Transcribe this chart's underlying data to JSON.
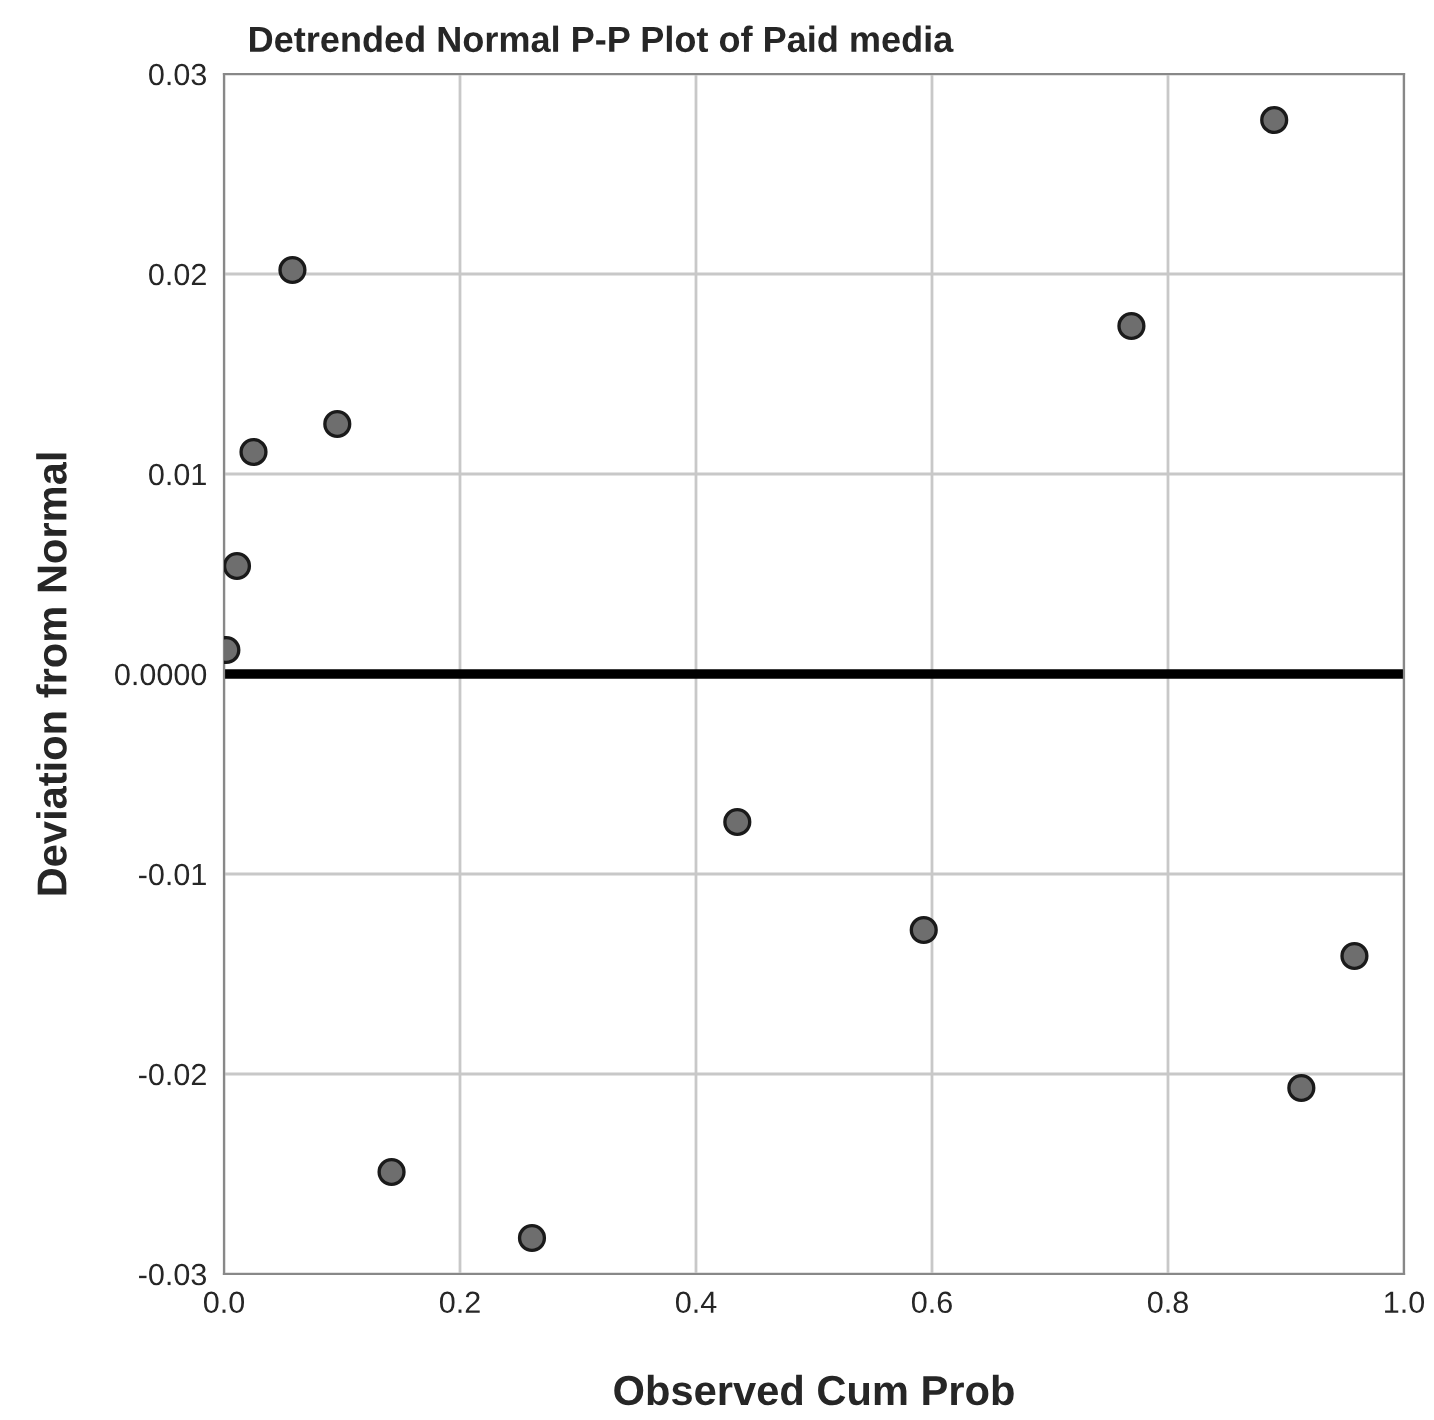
{
  "chart_data": {
    "type": "scatter",
    "title": "Detrended Normal P-P Plot of Paid media",
    "xlabel": "Observed Cum Prob",
    "ylabel": "Deviation from Normal",
    "series": [
      {
        "color": "#6e6e6e",
        "x": [
          0.002,
          0.011,
          0.025,
          0.058,
          0.096,
          0.142,
          0.261,
          0.435,
          0.593,
          0.769,
          0.89,
          0.913,
          0.958
        ],
        "values": [
          0.0012,
          0.0054,
          0.0111,
          0.0202,
          0.0125,
          -0.0249,
          -0.0282,
          -0.0074,
          -0.0128,
          0.0174,
          0.0277,
          -0.0207,
          -0.0141
        ]
      }
    ],
    "xlim": [
      0.0,
      1.0
    ],
    "ylim": [
      -0.03,
      0.03
    ],
    "xticks": [
      {
        "value": 0,
        "label": "0.0"
      },
      0.2,
      0.4,
      0.6,
      0.8,
      {
        "value": 1,
        "label": "1.0"
      }
    ],
    "yticks": [
      -0.03,
      -0.02,
      -0.01,
      {
        "value": 0,
        "label": "0.0000"
      },
      0.01,
      0.02,
      0.03
    ],
    "ref_lines": [
      {
        "axis": "y",
        "value": 0,
        "color": "#000000"
      }
    ],
    "grid": true,
    "marker": "circle"
  }
}
